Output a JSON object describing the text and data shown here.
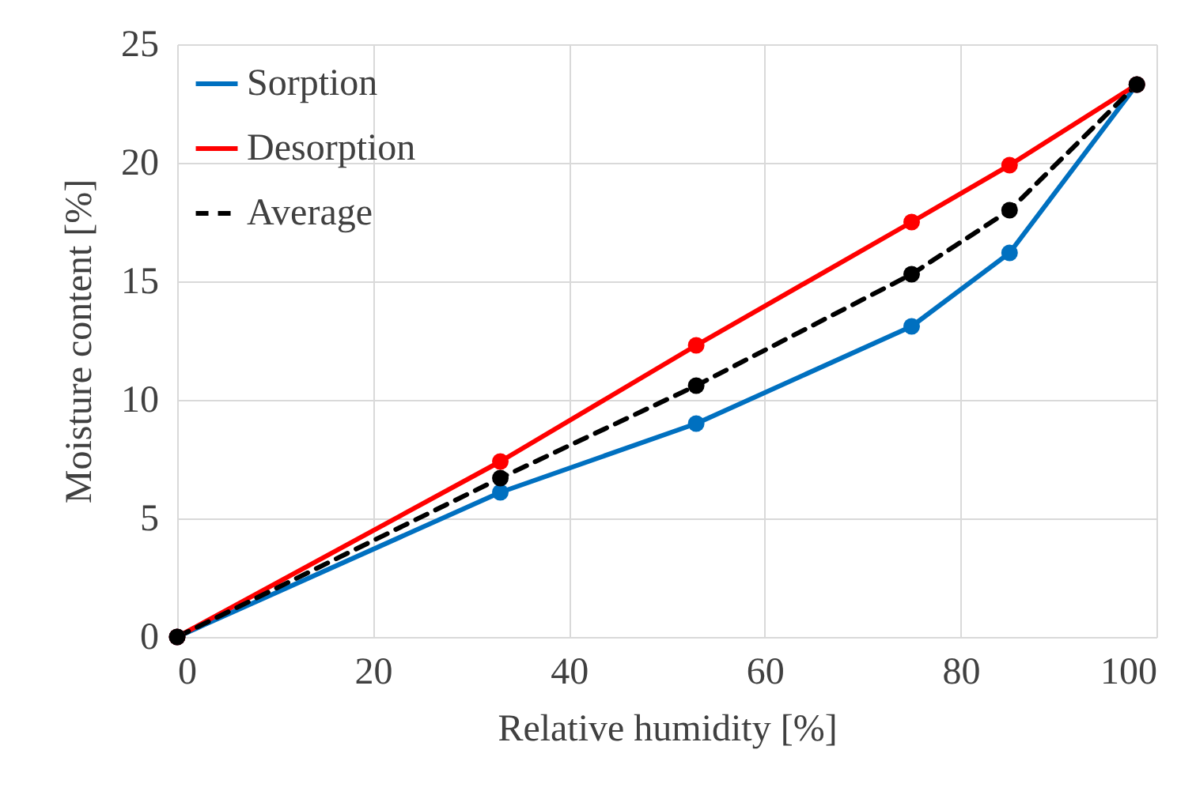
{
  "chart_data": {
    "type": "line",
    "xlabel": "Relative humidity [%]",
    "ylabel": "Moisture content [%]",
    "x": [
      0,
      33,
      53,
      75,
      85,
      98
    ],
    "series": [
      {
        "name": "Sorption",
        "color": "#0070c0",
        "values": [
          0,
          6.1,
          9.0,
          13.1,
          16.2,
          23.3
        ],
        "line_style": "solid"
      },
      {
        "name": "Desorption",
        "color": "#ff0000",
        "values": [
          0,
          7.4,
          12.3,
          17.5,
          19.9,
          23.3
        ],
        "line_style": "solid"
      },
      {
        "name": "Average",
        "color": "#000000",
        "values": [
          0,
          6.7,
          10.6,
          15.3,
          18.0,
          23.3
        ],
        "line_style": "dashed"
      }
    ],
    "xlim": [
      0,
      100
    ],
    "xticks": [
      0,
      20,
      40,
      60,
      80,
      100
    ],
    "ylim": [
      0,
      25
    ],
    "yticks": [
      0,
      5,
      10,
      15,
      20,
      25
    ],
    "grid": true,
    "legend": "top left",
    "marker": "circle"
  }
}
